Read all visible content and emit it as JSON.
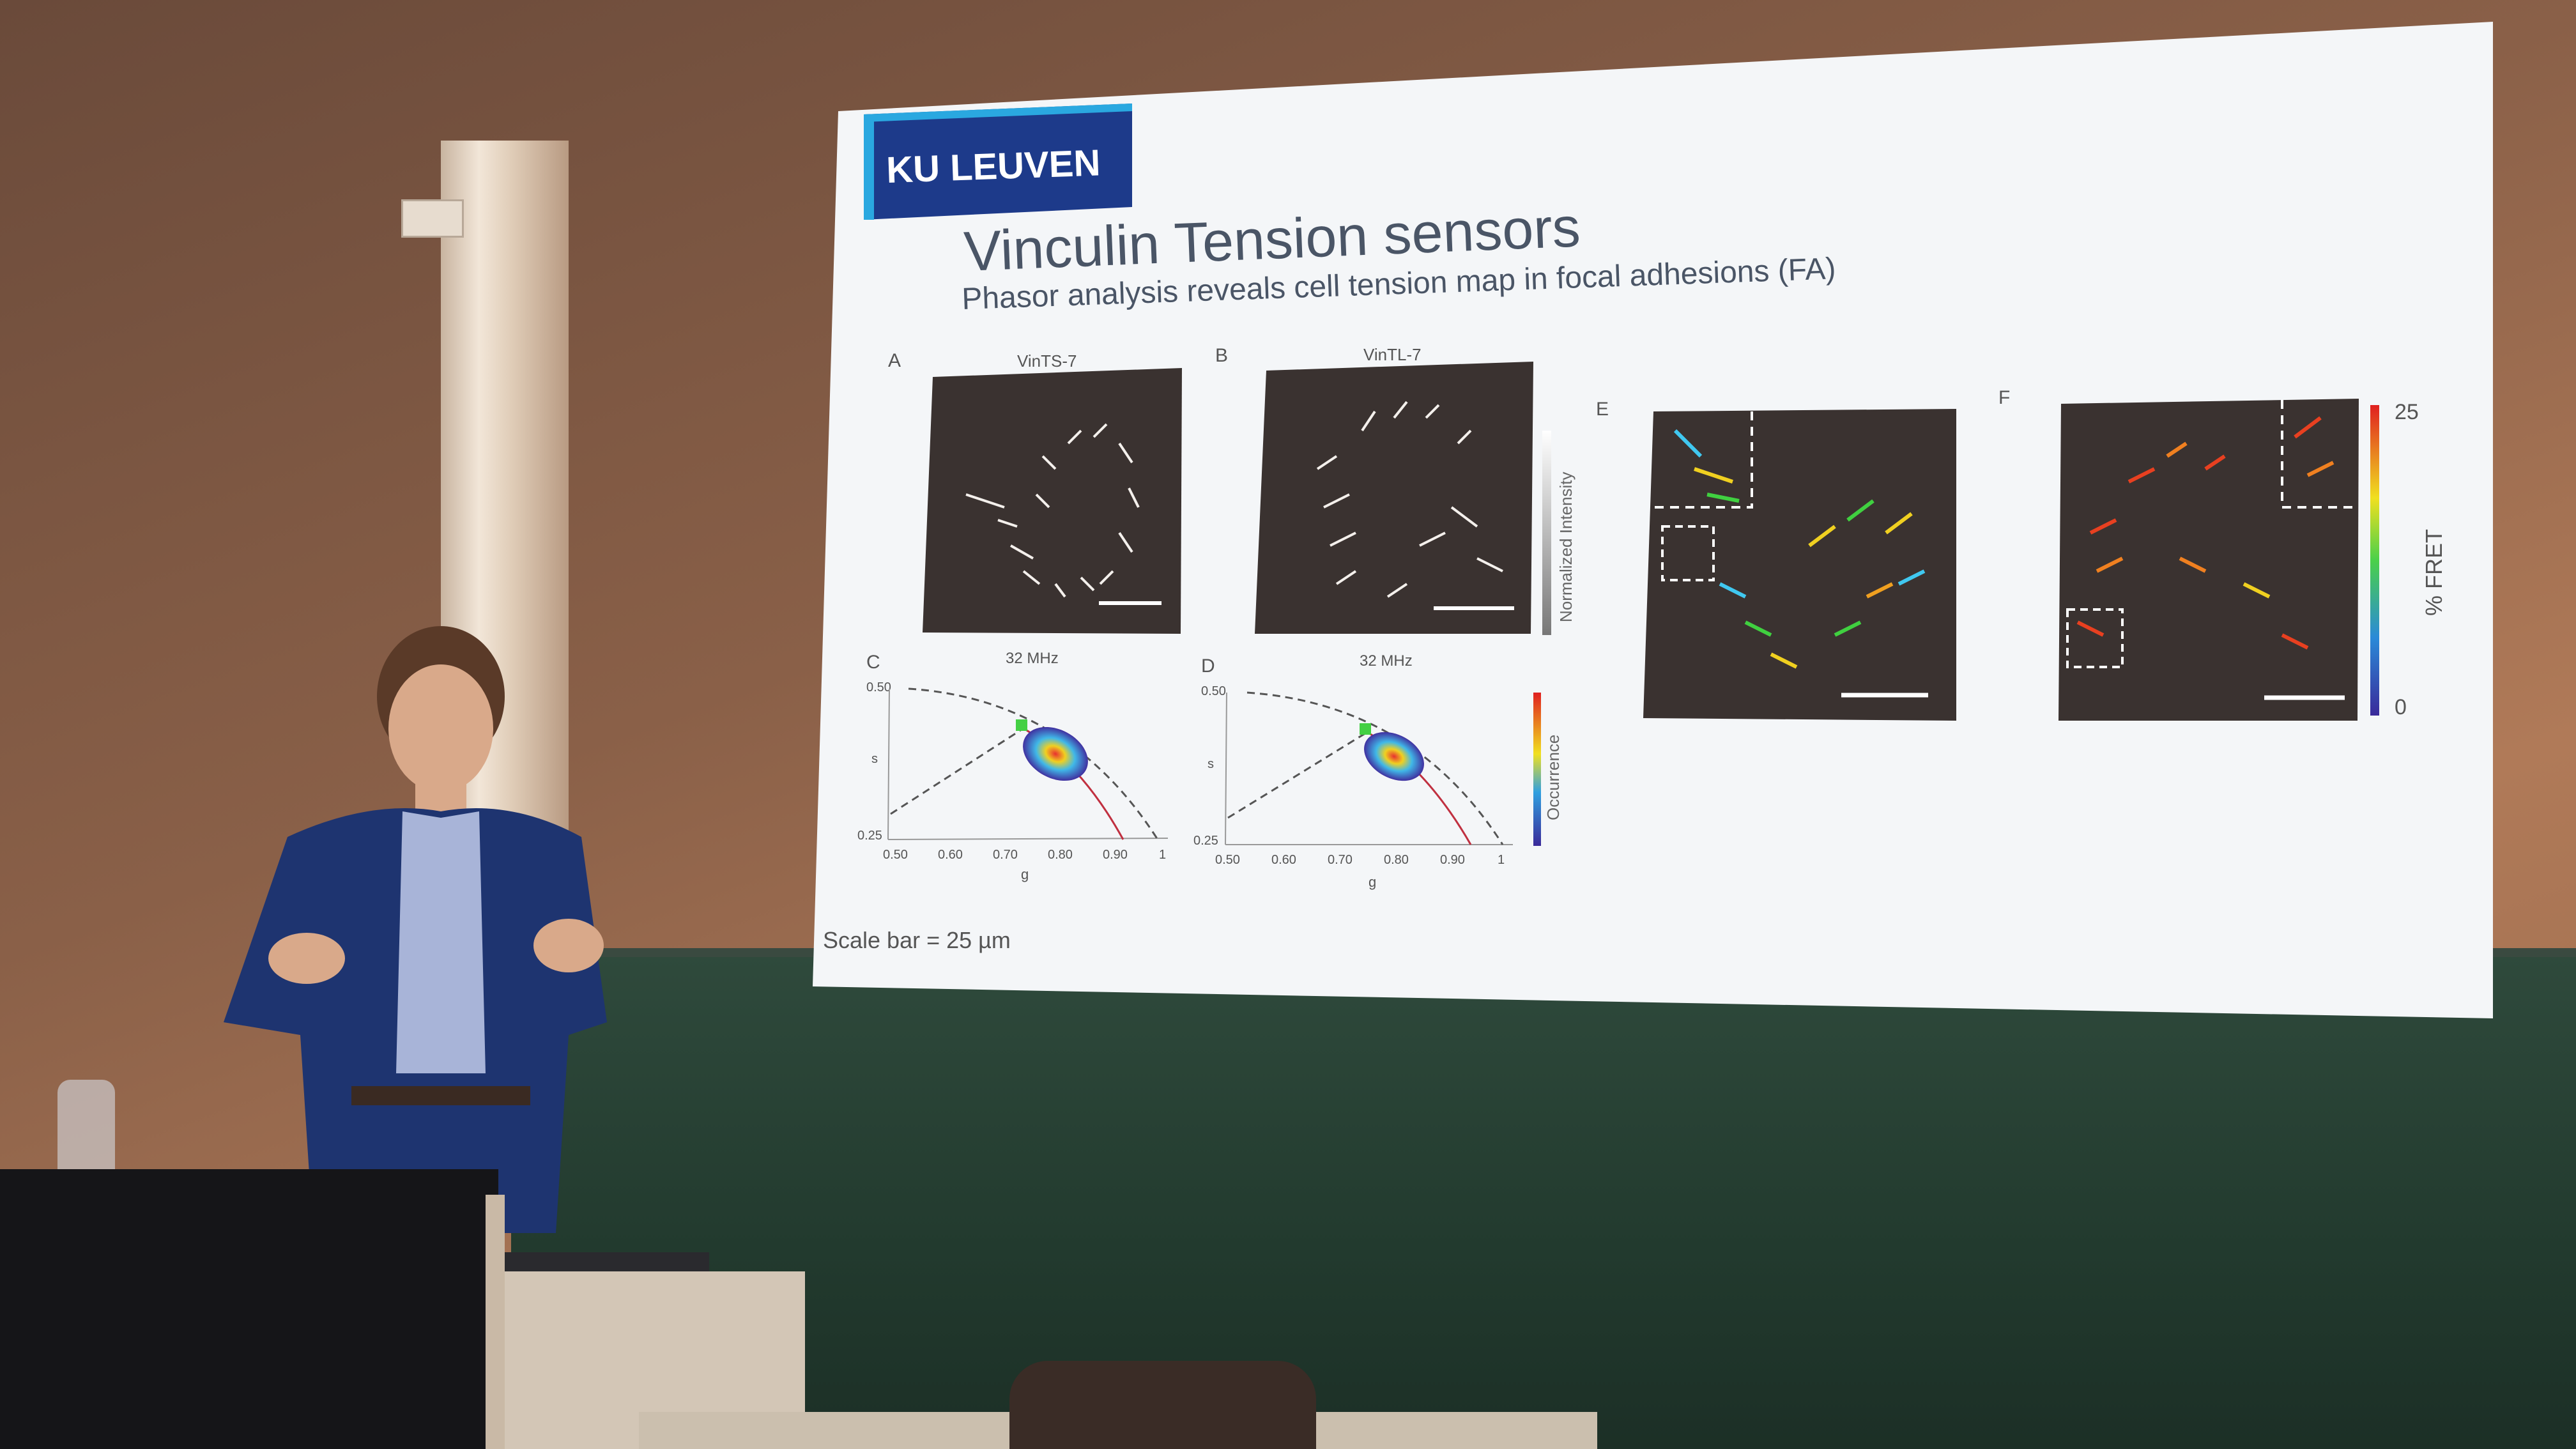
{
  "slide": {
    "logo": "KU LEUVEN",
    "title": "Vinculin Tension sensors",
    "subtitle": "Phasor analysis reveals cell tension map in focal adhesions (FA)",
    "panels": {
      "A": {
        "label": "A",
        "header": "VinTS-7"
      },
      "B": {
        "label": "B",
        "header": "VinTL-7",
        "colorbar": "Normalized Intensity"
      },
      "C": {
        "label": "C",
        "header": "32 MHz",
        "y_label": "s",
        "x_label": "g",
        "y_ticks": [
          "0.50",
          "0.25"
        ],
        "x_ticks": [
          "0.50",
          "0.60",
          "0.70",
          "0.80",
          "0.90",
          "1"
        ]
      },
      "D": {
        "label": "D",
        "header": "32 MHz",
        "y_label": "s",
        "x_label": "g",
        "y_ticks": [
          "0.50",
          "0.25"
        ],
        "x_ticks": [
          "0.50",
          "0.60",
          "0.70",
          "0.80",
          "0.90",
          "1"
        ],
        "colorbar": "Occurrence"
      },
      "E": {
        "label": "E"
      },
      "F": {
        "label": "F",
        "colorbar": "% FRET",
        "cb_max": "25",
        "cb_min": "0"
      }
    },
    "scale_bar": "Scale bar = 25 µm"
  },
  "colors": {
    "logo_blue": "#1d3a8a",
    "logo_accent": "#2aa8e0",
    "slide_bg": "#f4f6f8",
    "title_text": "#4a5566"
  }
}
